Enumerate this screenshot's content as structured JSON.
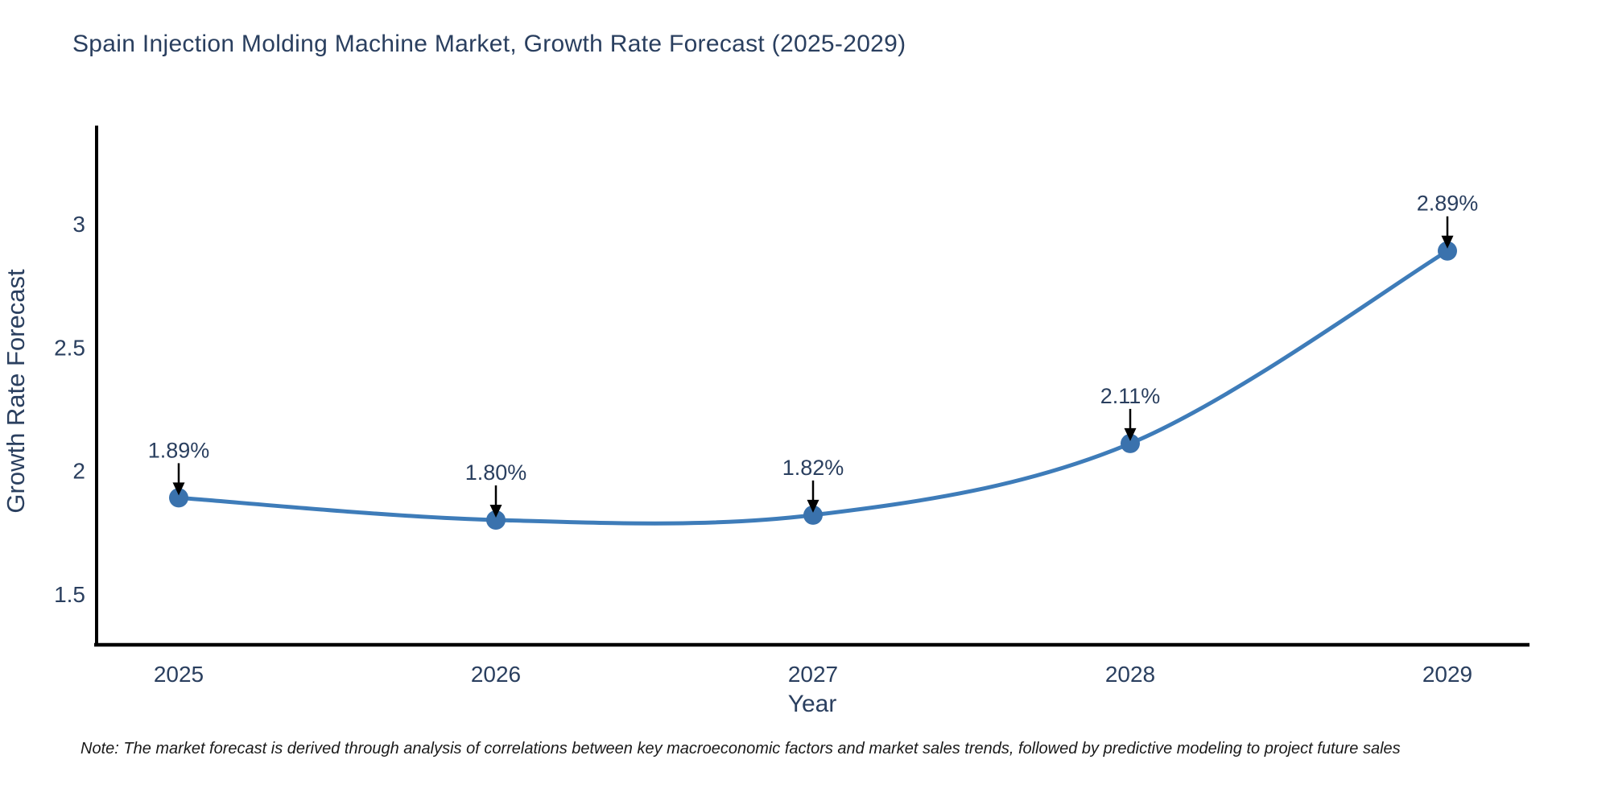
{
  "chart": {
    "note": "Note: The market forecast is derived through analysis of correlations between key macroeconomic factors and market sales trends, followed by predictive modeling to project future sales"
  },
  "chart_data": {
    "type": "line",
    "title": "Spain Injection Molding Machine Market, Growth Rate Forecast (2025-2029)",
    "xlabel": "Year",
    "ylabel": "Growth Rate Forecast",
    "x": [
      2025,
      2026,
      2027,
      2028,
      2029
    ],
    "xticks": [
      "2025",
      "2026",
      "2027",
      "2028",
      "2029"
    ],
    "series": [
      {
        "name": "Growth Rate Forecast",
        "values": [
          1.89,
          1.8,
          1.82,
          2.11,
          2.89
        ]
      }
    ],
    "point_labels": [
      "1.89%",
      "1.80%",
      "1.82%",
      "2.11%",
      "2.89%"
    ],
    "yticks": [
      1.5,
      2,
      2.5,
      3
    ],
    "ylim": [
      1.29,
      3.4
    ],
    "grid": false,
    "legend_position": "none",
    "line_shape": "spline",
    "marker": "circle",
    "annotation_arrows": true,
    "colors": {
      "line": "#3e7cb9",
      "marker": "#3a72ad",
      "axis": "#000000",
      "text": "#2a3f5f",
      "arrow": "#000000",
      "note_text": "#1a1a1a",
      "background": "#ffffff"
    }
  }
}
